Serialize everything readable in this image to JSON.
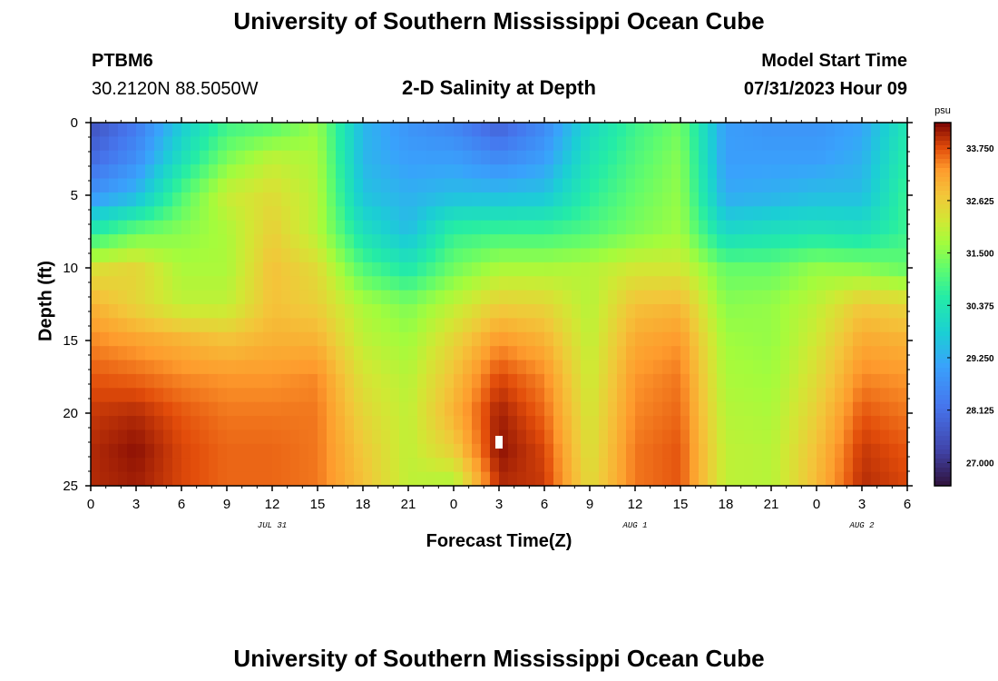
{
  "header": {
    "title": "University of Southern Mississippi Ocean Cube",
    "station": "PTBM6",
    "coords": "30.2120N  88.5050W",
    "plot_title": "2-D Salinity at Depth",
    "model_start_label": "Model Start Time",
    "model_start_value": "07/31/2023 Hour 09"
  },
  "footer": {
    "title": "University of Southern Mississippi Ocean Cube"
  },
  "chart_data": {
    "type": "heatmap",
    "title": "2-D Salinity at Depth",
    "xlabel": "Forecast Time(Z)",
    "ylabel": "Depth (ft)",
    "x_tick_labels": [
      "0",
      "3",
      "6",
      "9",
      "12",
      "15",
      "18",
      "21",
      "0",
      "3",
      "6",
      "9",
      "12",
      "15",
      "18",
      "21",
      "0",
      "3",
      "6"
    ],
    "x_date_labels": [
      {
        "label": "JUL 31",
        "at_tick_index": 4
      },
      {
        "label": "AUG 1",
        "at_tick_index": 12
      },
      {
        "label": "AUG 2",
        "at_tick_index": 17
      }
    ],
    "x_range_hours": [
      0,
      54
    ],
    "y_ticks": [
      0,
      5,
      10,
      15,
      20,
      25
    ],
    "ylim": [
      0,
      25
    ],
    "y_inverted": true,
    "colorbar": {
      "unit": "psu",
      "ticks": [
        "33.750",
        "32.625",
        "31.500",
        "30.375",
        "29.250",
        "28.125",
        "27.000"
      ],
      "range": [
        26.5,
        34.3
      ]
    },
    "marker": {
      "hour": 27,
      "depth_ft": 22
    },
    "salinity_grid_note": "rows = depth 0..25 ft; cols = forecast hour 0..54",
    "depth_rows": [
      0,
      2.5,
      5,
      7.5,
      10,
      12.5,
      15,
      17.5,
      20,
      22.5,
      25
    ],
    "hour_cols": [
      0,
      3,
      6,
      9,
      12,
      15,
      18,
      21,
      24,
      27,
      30,
      33,
      36,
      39,
      42,
      45,
      48,
      51,
      54
    ],
    "salinity": [
      [
        27.5,
        28.3,
        29.7,
        30.8,
        31.0,
        31.6,
        29.4,
        28.8,
        28.5,
        27.8,
        28.6,
        30.0,
        30.8,
        31.3,
        29.0,
        28.8,
        28.8,
        29.1,
        30.4
      ],
      [
        28.0,
        28.7,
        30.2,
        31.4,
        32.0,
        31.8,
        29.4,
        29.0,
        29.0,
        28.6,
        29.0,
        30.3,
        31.0,
        31.5,
        29.0,
        29.0,
        29.0,
        29.3,
        30.6
      ],
      [
        28.8,
        29.4,
        31.0,
        32.1,
        32.4,
        31.9,
        29.6,
        29.3,
        29.5,
        29.5,
        29.6,
        30.6,
        31.2,
        31.6,
        29.2,
        29.3,
        29.5,
        29.5,
        30.8
      ],
      [
        30.5,
        31.2,
        31.5,
        31.8,
        32.6,
        31.9,
        30.2,
        29.5,
        30.7,
        30.8,
        30.8,
        31.0,
        31.4,
        31.7,
        30.0,
        30.2,
        30.3,
        30.2,
        30.8
      ],
      [
        32.3,
        32.5,
        31.8,
        31.8,
        32.8,
        32.4,
        31.0,
        30.4,
        31.3,
        31.8,
        31.8,
        31.9,
        32.2,
        32.2,
        31.2,
        31.2,
        31.6,
        31.5,
        31.2
      ],
      [
        33.0,
        32.5,
        32.0,
        32.0,
        32.8,
        32.6,
        31.8,
        31.4,
        32.0,
        32.6,
        32.5,
        31.9,
        32.8,
        32.9,
        31.5,
        31.6,
        32.0,
        32.7,
        32.5
      ],
      [
        33.4,
        33.2,
        33.0,
        32.8,
        33.0,
        33.0,
        32.0,
        31.7,
        32.5,
        33.3,
        33.0,
        32.0,
        33.1,
        33.3,
        31.7,
        31.6,
        32.2,
        33.1,
        33.0
      ],
      [
        33.7,
        33.6,
        33.4,
        33.3,
        33.3,
        33.4,
        32.3,
        31.9,
        32.8,
        33.8,
        33.4,
        32.1,
        33.3,
        33.5,
        31.8,
        31.7,
        32.4,
        33.4,
        33.3
      ],
      [
        33.9,
        34.0,
        33.7,
        33.5,
        33.5,
        33.5,
        32.5,
        32.0,
        33.0,
        34.1,
        33.6,
        32.2,
        33.4,
        33.6,
        31.9,
        31.8,
        32.6,
        33.7,
        33.5
      ],
      [
        34.0,
        34.2,
        33.8,
        33.6,
        33.6,
        33.5,
        32.7,
        32.0,
        32.6,
        34.2,
        33.8,
        32.3,
        33.5,
        33.7,
        32.0,
        31.9,
        32.8,
        33.9,
        33.7
      ],
      [
        34.0,
        34.1,
        33.8,
        33.6,
        33.6,
        33.5,
        32.8,
        32.0,
        31.8,
        34.0,
        33.9,
        32.4,
        33.5,
        33.7,
        32.0,
        31.9,
        32.9,
        34.0,
        33.8
      ]
    ]
  }
}
